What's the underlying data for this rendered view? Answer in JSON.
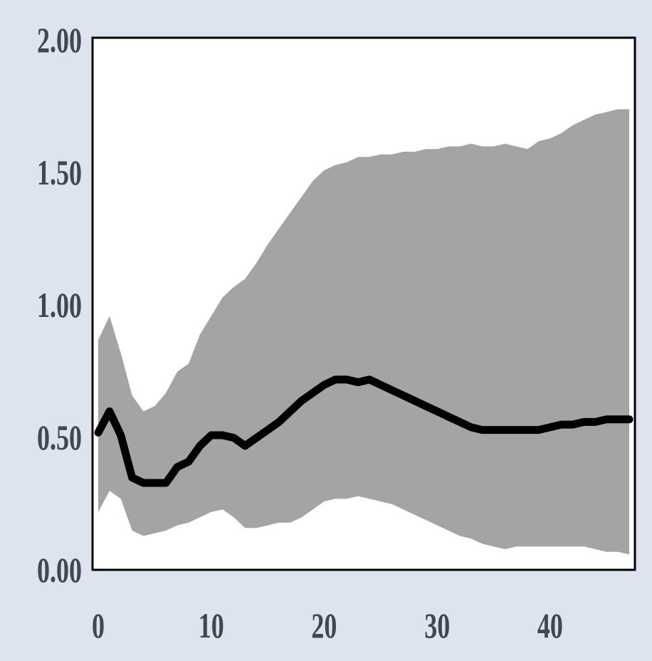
{
  "chart_data": {
    "type": "line",
    "title": "",
    "xlabel": "",
    "ylabel": "",
    "xlim": [
      0,
      47
    ],
    "ylim": [
      0,
      2
    ],
    "x_ticks": [
      0,
      10,
      20,
      30,
      40
    ],
    "x_tick_labels": [
      "0",
      "10",
      "20",
      "30",
      "40"
    ],
    "y_ticks": [
      0,
      0.5,
      1,
      1.5,
      2
    ],
    "y_tick_labels": [
      "0.00",
      "0.50",
      "1.00",
      "1.50",
      "2.00"
    ],
    "grid": false,
    "legend": "none",
    "x": [
      0,
      1,
      2,
      3,
      4,
      5,
      6,
      7,
      8,
      9,
      10,
      11,
      12,
      13,
      14,
      15,
      16,
      17,
      18,
      19,
      20,
      21,
      22,
      23,
      24,
      25,
      26,
      27,
      28,
      29,
      30,
      31,
      32,
      33,
      34,
      35,
      36,
      37,
      38,
      39,
      40,
      41,
      42,
      43,
      44,
      45,
      46,
      47
    ],
    "series": [
      {
        "role": "point-estimate",
        "values": [
          0.51,
          0.59,
          0.5,
          0.34,
          0.32,
          0.32,
          0.32,
          0.38,
          0.4,
          0.46,
          0.5,
          0.5,
          0.49,
          0.46,
          0.49,
          0.52,
          0.55,
          0.59,
          0.63,
          0.66,
          0.69,
          0.71,
          0.71,
          0.7,
          0.71,
          0.69,
          0.67,
          0.65,
          0.63,
          0.61,
          0.59,
          0.57,
          0.55,
          0.53,
          0.52,
          0.52,
          0.52,
          0.52,
          0.52,
          0.52,
          0.53,
          0.54,
          0.54,
          0.55,
          0.55,
          0.56,
          0.56,
          0.56
        ],
        "color": "#000000"
      },
      {
        "role": "confidence-band-upper",
        "values": [
          0.86,
          0.95,
          0.81,
          0.65,
          0.59,
          0.61,
          0.66,
          0.74,
          0.77,
          0.88,
          0.95,
          1.02,
          1.06,
          1.09,
          1.15,
          1.22,
          1.28,
          1.34,
          1.4,
          1.46,
          1.5,
          1.52,
          1.53,
          1.55,
          1.55,
          1.56,
          1.56,
          1.57,
          1.57,
          1.58,
          1.58,
          1.59,
          1.59,
          1.6,
          1.59,
          1.59,
          1.6,
          1.59,
          1.58,
          1.61,
          1.62,
          1.64,
          1.67,
          1.69,
          1.71,
          1.72,
          1.73,
          1.73
        ],
        "color": "#a4a4a4"
      },
      {
        "role": "confidence-band-lower",
        "values": [
          0.21,
          0.29,
          0.26,
          0.14,
          0.12,
          0.13,
          0.14,
          0.16,
          0.17,
          0.19,
          0.21,
          0.22,
          0.19,
          0.15,
          0.15,
          0.16,
          0.17,
          0.17,
          0.19,
          0.22,
          0.25,
          0.26,
          0.26,
          0.27,
          0.26,
          0.25,
          0.24,
          0.22,
          0.2,
          0.18,
          0.16,
          0.14,
          0.12,
          0.11,
          0.09,
          0.08,
          0.07,
          0.08,
          0.08,
          0.08,
          0.08,
          0.08,
          0.08,
          0.08,
          0.07,
          0.06,
          0.06,
          0.05
        ],
        "color": "#a4a4a4"
      }
    ],
    "colors": {
      "background": "#dde4ef",
      "plot_area": "#ffffff",
      "band": "#a4a4a4",
      "line": "#000000",
      "tick_text": "#3f4754"
    }
  }
}
